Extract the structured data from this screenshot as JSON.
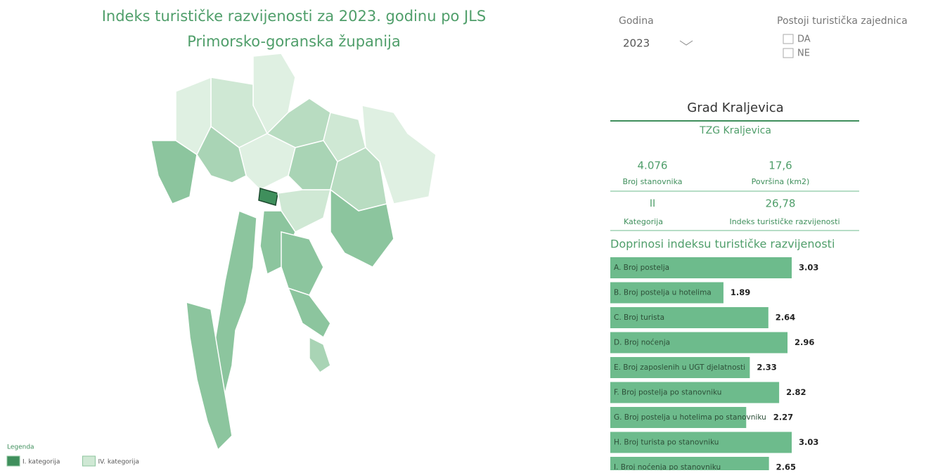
{
  "header": {
    "title": "Indeks turističke razvijenosti za 2023. godinu po JLS",
    "subtitle": "Primorsko-goranska županija"
  },
  "filters": {
    "year_label": "Godina",
    "year": "2023",
    "tz_label": "Postoji turistička zajednica",
    "options": [
      "DA",
      "NE"
    ]
  },
  "info": {
    "name": "Grad Kraljevica",
    "tz": "TZG Kraljevica",
    "stats": [
      {
        "value": "4.076",
        "label": "Broj stanovnika"
      },
      {
        "value": "17,6",
        "label": "Površina (km2)"
      },
      {
        "value": "II",
        "label": "Kategorija"
      },
      {
        "value": "26,78",
        "label": "Indeks turističke razvijenosti"
      }
    ]
  },
  "legend": {
    "title": "Legenda",
    "items": [
      {
        "label": "I. kategorija",
        "color": "#3f8f5c"
      },
      {
        "label": "IV. kategorija",
        "color": "#cfe8d4"
      }
    ]
  },
  "chart_data": {
    "type": "bar",
    "title": "Doprinosi indeksu turističke razvijenosti",
    "color": "#6dbb8c",
    "categories": [
      "A. Broj postelja",
      "B. Broj postelja u hotelima",
      "C. Broj turista",
      "D. Broj noćenja",
      "E. Broj zaposlenih u UGT djelatnosti",
      "F. Broj postelja po stanovniku",
      "G. Broj postelja u hotelima po stanovniku",
      "H. Broj turista po stanovniku",
      "I. Broj noćenja po stanovniku"
    ],
    "values": [
      3.03,
      1.89,
      2.64,
      2.96,
      2.33,
      2.82,
      2.27,
      3.03,
      2.65
    ]
  }
}
